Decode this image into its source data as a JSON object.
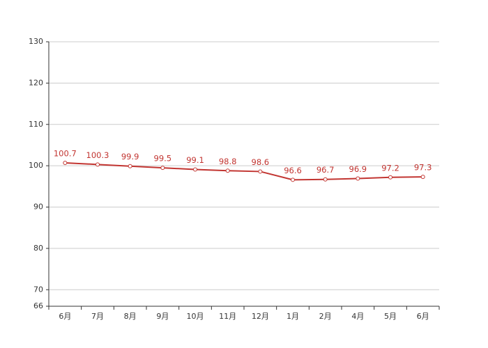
{
  "chart_data": {
    "type": "line",
    "categories": [
      "6月",
      "7月",
      "8月",
      "9月",
      "10月",
      "11月",
      "12月",
      "1月",
      "2月",
      "4月",
      "5月",
      "6月"
    ],
    "values": [
      100.7,
      100.3,
      99.9,
      99.5,
      99.1,
      98.8,
      98.6,
      96.6,
      96.7,
      96.9,
      97.2,
      97.3
    ],
    "color": "#c23531",
    "ylim": [
      66,
      130
    ],
    "yticks": [
      66,
      70,
      80,
      90,
      100,
      110,
      120,
      130
    ],
    "grid": true
  }
}
